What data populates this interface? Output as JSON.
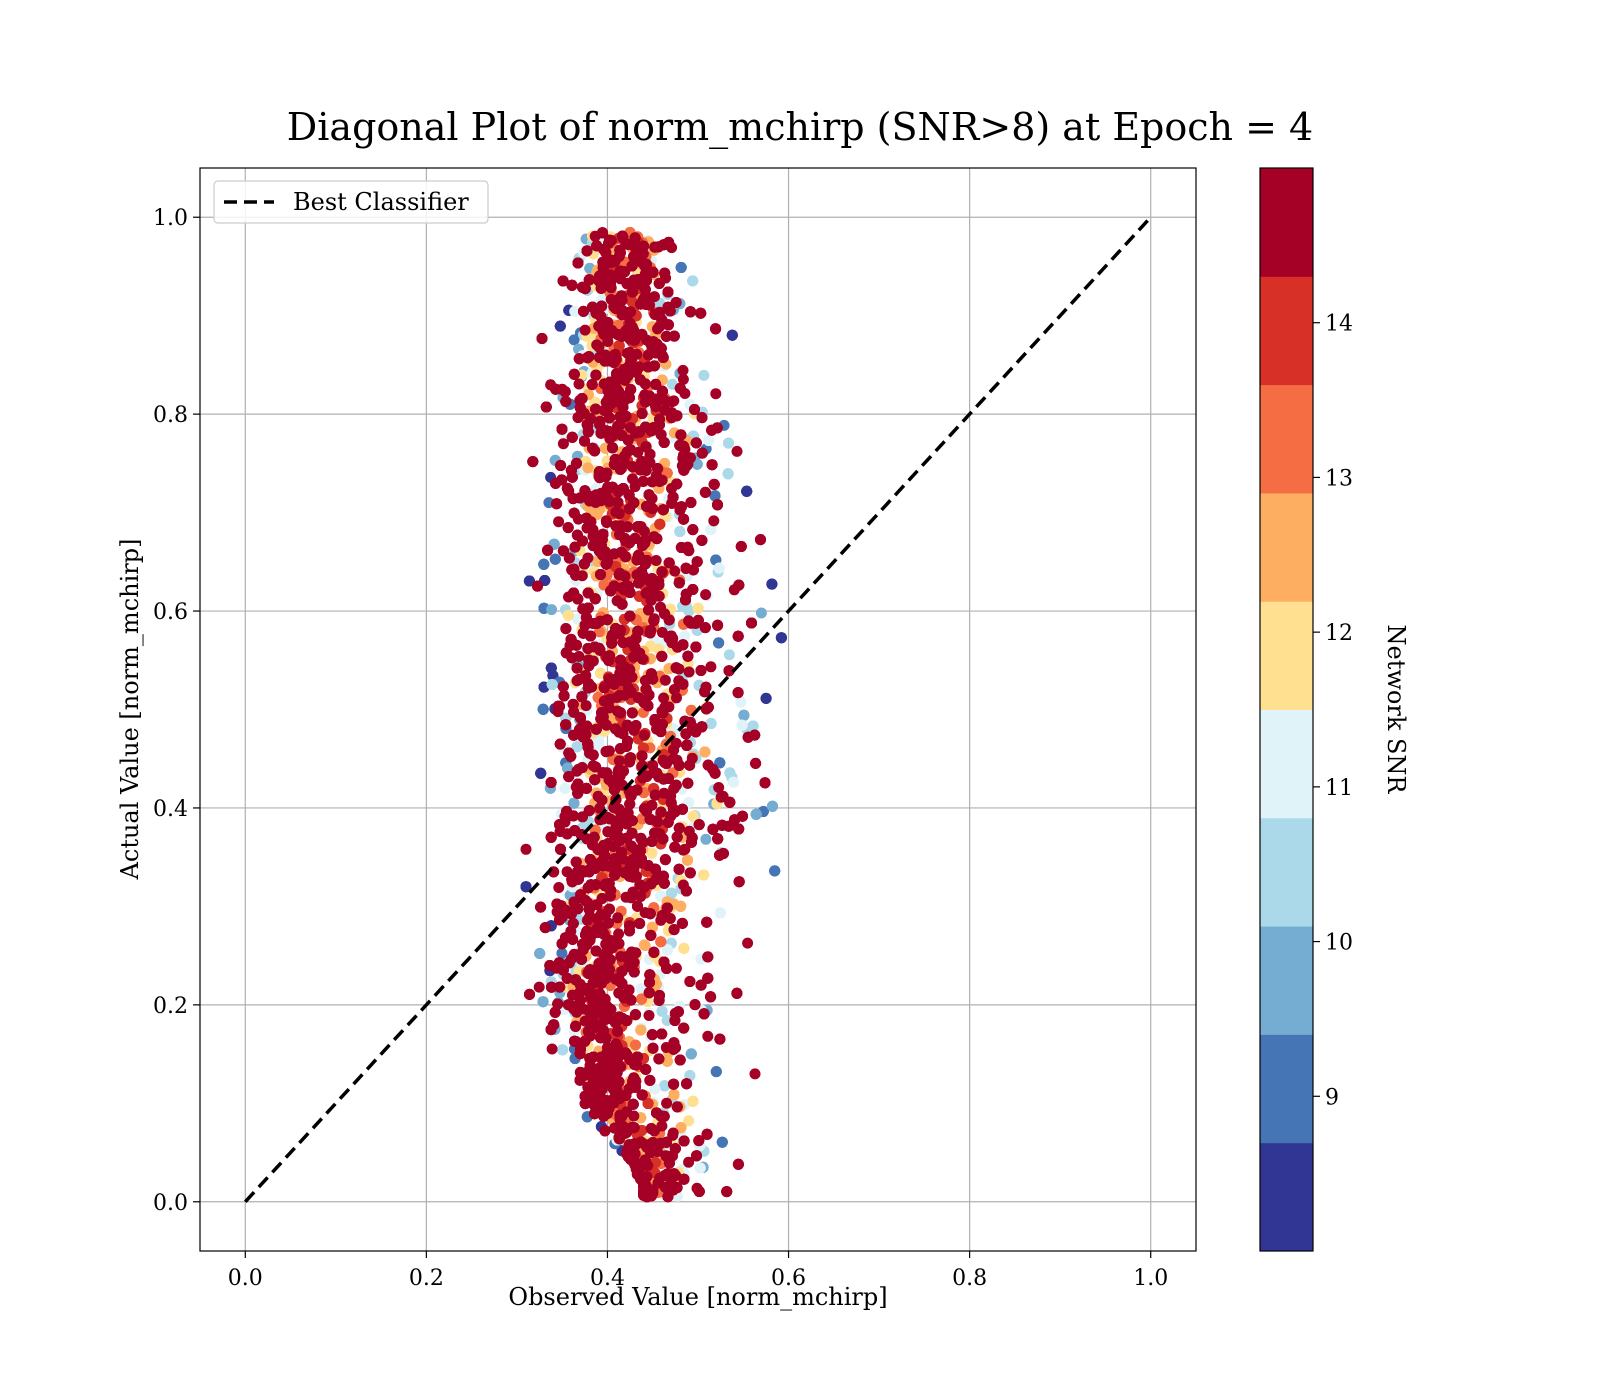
{
  "chart_data": {
    "type": "scatter",
    "title": "Diagonal Plot of norm_mchirp (SNR>8) at Epoch = 4",
    "xlabel": "Observed Value [norm_mchirp]",
    "ylabel": "Actual Value [norm_mchirp]",
    "xlim": [
      -0.05,
      1.05
    ],
    "ylim": [
      -0.05,
      1.05
    ],
    "x_ticks": [
      "0.0",
      "0.2",
      "0.4",
      "0.6",
      "0.8",
      "1.0"
    ],
    "y_ticks": [
      "0.0",
      "0.2",
      "0.4",
      "0.6",
      "0.8",
      "1.0"
    ],
    "grid": true,
    "legend": {
      "placement": "upper-left",
      "entries": [
        "Best Classifier"
      ]
    },
    "reference_line": {
      "name": "Best Classifier",
      "x": [
        0.0,
        1.0
      ],
      "y": [
        0.0,
        1.0
      ],
      "style": "dashed",
      "color": "#000000"
    },
    "colorbar": {
      "label": "Network SNR",
      "range": [
        8.0,
        15.0
      ],
      "tick_values": [
        9,
        10,
        11,
        12,
        13,
        14
      ],
      "tick_labels": [
        "9",
        "10",
        "11",
        "12",
        "13",
        "14"
      ],
      "bins": [
        8.0,
        8.7,
        9.4,
        10.1,
        10.8,
        11.5,
        12.2,
        12.9,
        13.6,
        14.3,
        15.0
      ],
      "colors": [
        "#313695",
        "#4575b4",
        "#74add1",
        "#abd9e9",
        "#e0f3f8",
        "#fee090",
        "#fdae61",
        "#f46d43",
        "#d73027",
        "#a50026"
      ]
    },
    "point_cloud_summary": {
      "description_values": {
        "observed_center_vs_actual": [
          [
            0.0,
            0.44
          ],
          [
            0.2,
            0.39
          ],
          [
            0.4,
            0.42
          ],
          [
            0.6,
            0.42
          ],
          [
            0.8,
            0.42
          ],
          [
            1.0,
            0.42
          ]
        ],
        "observed_low_edge_vs_actual": [
          [
            0.02,
            0.45
          ],
          [
            0.1,
            0.36
          ],
          [
            0.2,
            0.32
          ],
          [
            0.4,
            0.32
          ],
          [
            0.6,
            0.32
          ],
          [
            0.8,
            0.33
          ],
          [
            1.0,
            0.35
          ]
        ],
        "observed_high_edge_vs_actual": [
          [
            0.02,
            0.55
          ],
          [
            0.1,
            0.55
          ],
          [
            0.2,
            0.56
          ],
          [
            0.3,
            0.58
          ],
          [
            0.4,
            0.6
          ],
          [
            0.5,
            0.6
          ],
          [
            0.6,
            0.58
          ],
          [
            0.7,
            0.57
          ],
          [
            0.8,
            0.56
          ],
          [
            0.9,
            0.52
          ],
          [
            1.0,
            0.48
          ]
        ]
      }
    }
  }
}
